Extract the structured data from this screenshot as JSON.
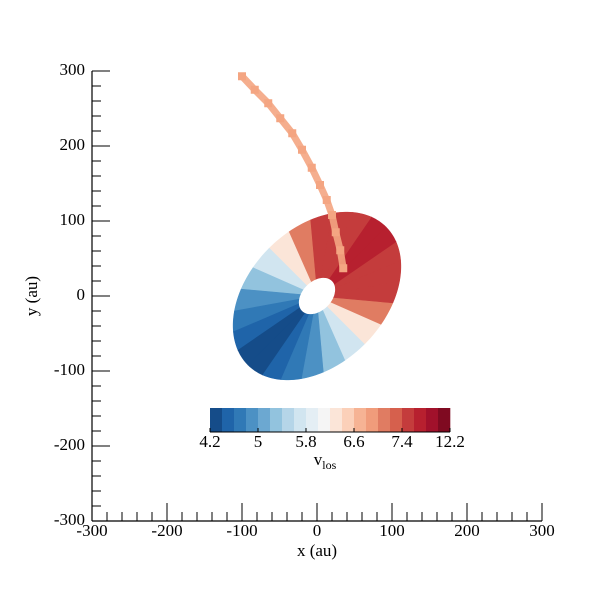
{
  "chart_data": {
    "type": "contour",
    "x_label": "x (au)",
    "y_label": "y (au)",
    "xlim": [
      -300,
      300
    ],
    "ylim": [
      -300,
      300
    ],
    "xticks": [
      -300,
      -200,
      -100,
      0,
      100,
      200,
      300
    ],
    "yticks": [
      -300,
      -200,
      -100,
      0,
      100,
      200,
      300
    ],
    "xminor_ticks": [
      -280,
      -260,
      -240,
      -220,
      -180,
      -160,
      -140,
      -120,
      -80,
      -60,
      -40,
      -20,
      20,
      40,
      60,
      80,
      120,
      140,
      160,
      180,
      220,
      240,
      260,
      280
    ],
    "yminor_ticks": [
      -280,
      -260,
      -240,
      -220,
      -180,
      -160,
      -140,
      -120,
      -80,
      -60,
      -40,
      -20,
      20,
      40,
      60,
      80,
      120,
      140,
      160,
      180,
      220,
      240,
      260,
      280
    ],
    "disk": {
      "center": [
        0,
        0
      ],
      "a": 130,
      "b": 90,
      "angle": 45,
      "inner": 0.22,
      "sector_angles": [
        0,
        15,
        30,
        45,
        60,
        75,
        90,
        105,
        120,
        135,
        150,
        165,
        180,
        195,
        210,
        225,
        240,
        255,
        270,
        285,
        300,
        315,
        330,
        345,
        360
      ],
      "values": [
        8.78,
        8.59,
        8.22,
        7.7,
        7.07,
        6.37,
        5.78,
        5.35,
        4.96,
        4.65,
        4.43,
        4.32,
        4.32,
        4.43,
        4.65,
        4.96,
        5.35,
        5.78,
        6.37,
        7.07,
        7.7,
        8.22,
        8.59,
        8.78
      ]
    },
    "stream": {
      "color": "#f4a582",
      "x": [
        -100,
        -83,
        -65,
        -49,
        -33,
        -20,
        -7,
        4,
        13,
        20,
        25,
        31,
        35
      ],
      "y": [
        293,
        275,
        257,
        237,
        217,
        195,
        171,
        148,
        128,
        108,
        85,
        61,
        37
      ]
    },
    "colorbar": {
      "label": "v",
      "label_sub": "los",
      "levels": [
        4.2,
        4.4,
        4.6,
        4.8,
        5,
        5.2,
        5.4,
        5.6,
        5.8,
        6,
        6.2,
        6.4,
        6.6,
        6.8,
        7,
        7.2,
        7.4,
        8.6,
        9.8,
        11,
        12.2
      ],
      "colors": [
        "#154c89",
        "#1f64a9",
        "#3079b6",
        "#4c91c4",
        "#6ca8d1",
        "#92c3de",
        "#b5d5e8",
        "#d1e5f0",
        "#e4eef4",
        "#f5f5f5",
        "#fbe5d8",
        "#fbd0b9",
        "#f6b394",
        "#f09c7b",
        "#e07c62",
        "#d6604d",
        "#c43c3c",
        "#b7202f",
        "#a1112b",
        "#7f0a21"
      ],
      "ticks": [
        4.2,
        5,
        5.8,
        6.6,
        7.4,
        12.2
      ]
    }
  }
}
